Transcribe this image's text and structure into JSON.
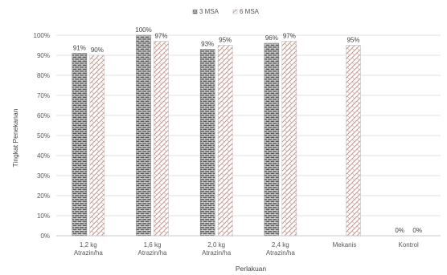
{
  "chart_data": {
    "type": "bar",
    "ylabel": "Tingkat Penekanan",
    "xlabel": "Perlakuan",
    "ylim": [
      0,
      100
    ],
    "yticks": [
      "0%",
      "10%",
      "20%",
      "30%",
      "40%",
      "50%",
      "60%",
      "70%",
      "80%",
      "90%",
      "100%"
    ],
    "legend_position": "top",
    "categories": [
      [
        "1,2 kg",
        "Atrazin/ha"
      ],
      [
        "1,6 kg",
        "Atrazin/ha"
      ],
      [
        "2,0 kg",
        "Atrazin/ha"
      ],
      [
        "2,4 kg",
        "Atrazin/ha"
      ],
      [
        "Mekanis"
      ],
      [
        "Kontrol"
      ]
    ],
    "series": [
      {
        "name": "3 MSA",
        "values": [
          91,
          100,
          93,
          96,
          null,
          0
        ],
        "labels": [
          "91%",
          "100%",
          "93%",
          "96%",
          "",
          "0%"
        ],
        "color": "#595959"
      },
      {
        "name": "6 MSA",
        "values": [
          90,
          97,
          95,
          97,
          95,
          0
        ],
        "labels": [
          "90%",
          "97%",
          "95%",
          "97%",
          "95%",
          "0%"
        ],
        "color": "#d9a79b"
      }
    ],
    "grid": true
  }
}
